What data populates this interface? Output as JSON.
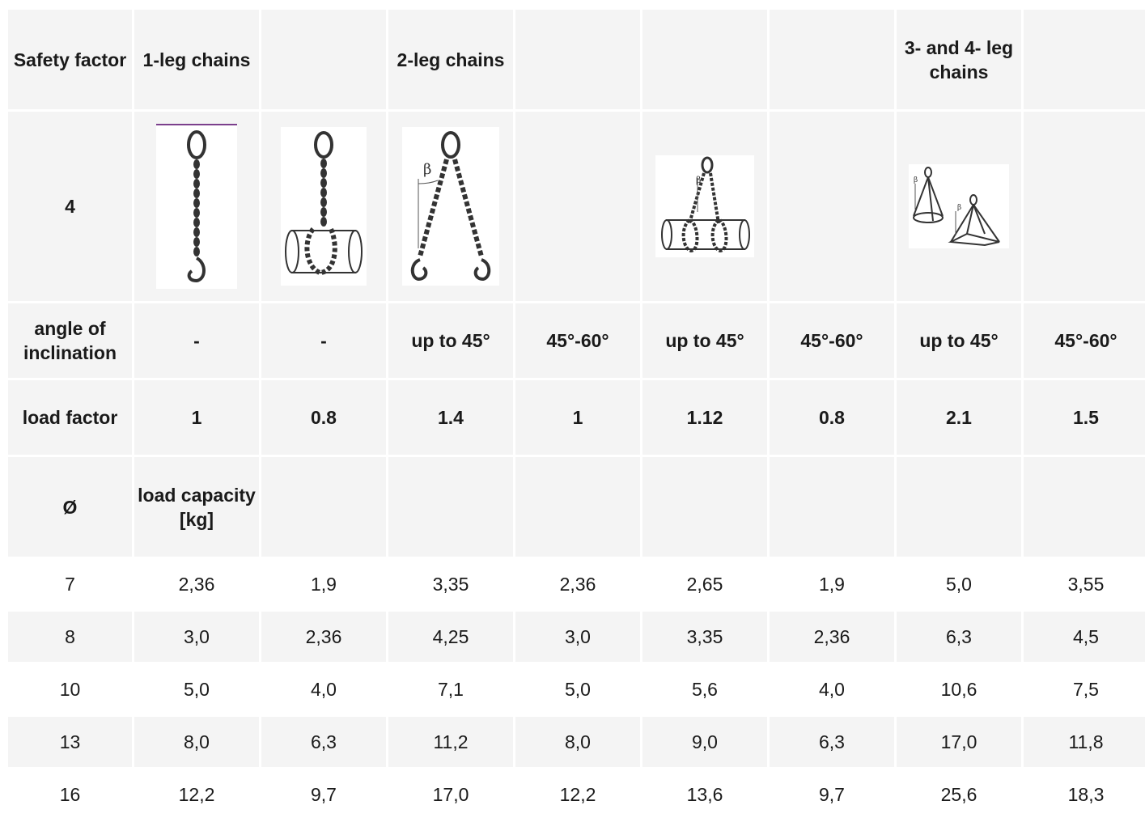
{
  "header": {
    "safety_factor": "Safety factor",
    "one_leg": "1-leg chains",
    "two_leg": "2-leg chains",
    "three_four_leg": "3- and 4- leg chains"
  },
  "image_row": {
    "safety_factor_value": "4",
    "images": [
      "chain-1-leg-hook-icon",
      "chain-1-leg-choke-pipe-icon",
      "chain-2-leg-hooks-icon",
      "chain-2-leg-pipe-icon",
      "chain-3-4-leg-load-icon"
    ],
    "beta": "β"
  },
  "angle_row": {
    "label": "angle of inclination",
    "values": [
      "-",
      "-",
      "up to 45°",
      "45°-60°",
      "up to 45°",
      "45°-60°",
      "up to 45°",
      "45°-60°"
    ]
  },
  "load_factor_row": {
    "label": "load factor",
    "values": [
      "1",
      "0.8",
      "1.4",
      "1",
      "1.12",
      "0.8",
      "2.1",
      "1.5"
    ]
  },
  "capacity_row": {
    "diameter": "Ø",
    "label": "load capacity [kg]"
  },
  "rows": [
    [
      "7",
      "2,36",
      "1,9",
      "3,35",
      "2,36",
      "2,65",
      "1,9",
      "5,0",
      "3,55"
    ],
    [
      "8",
      "3,0",
      "2,36",
      "4,25",
      "3,0",
      "3,35",
      "2,36",
      "6,3",
      "4,5"
    ],
    [
      "10",
      "5,0",
      "4,0",
      "7,1",
      "5,0",
      "5,6",
      "4,0",
      "10,6",
      "7,5"
    ],
    [
      "13",
      "8,0",
      "6,3",
      "11,2",
      "8,0",
      "9,0",
      "6,3",
      "17,0",
      "11,8"
    ],
    [
      "16",
      "12,2",
      "9,7",
      "17,0",
      "12,2",
      "13,6",
      "9,7",
      "25,6",
      "18,3"
    ]
  ],
  "colors": {
    "cell_bg": "#f4f4f4",
    "alt_bg": "#ffffff",
    "accent_line": "#7b3f8c"
  }
}
